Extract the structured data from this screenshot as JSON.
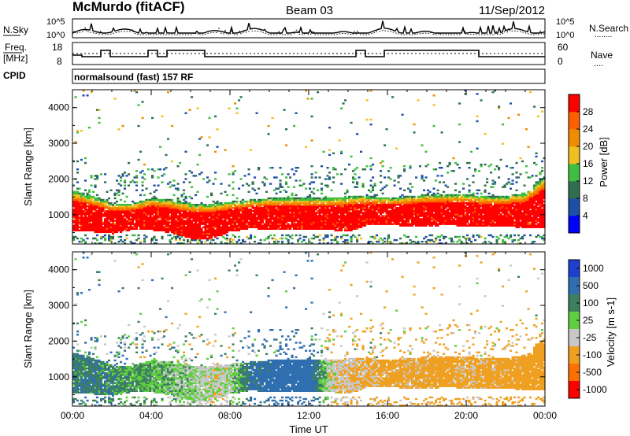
{
  "header": {
    "station": "McMurdo (fitACF)",
    "beam": "Beam 03",
    "date": "11/Sep/2012"
  },
  "noise_panel": {
    "left_label": "N.Sky",
    "right_label": "N.Search",
    "right_key": "........",
    "ytick_top": "10^5",
    "ytick_bottom": "10^0"
  },
  "freq_panel": {
    "left_label_1": "Freq.",
    "left_label_2": "[MHz]",
    "ytick_top": "18",
    "ytick_bottom": "8",
    "right_label": "Nave",
    "right_key": "....",
    "rtick_top": "60",
    "rtick_bottom": "0"
  },
  "cpid": {
    "label": "CPID",
    "value": "normalsound (fast) 157 RF"
  },
  "x_axis": {
    "title": "Time UT",
    "ticks": [
      "00:00",
      "04:00",
      "08:00",
      "12:00",
      "16:00",
      "20:00",
      "00:00"
    ]
  },
  "power_panel": {
    "ylabel": "Slant Range [km]",
    "yticks": [
      "1000",
      "2000",
      "3000",
      "4000"
    ],
    "colorbar_title": "Power [dB]",
    "colorbar_ticks": [
      "4",
      "8",
      "12",
      "16",
      "20",
      "24",
      "28"
    ],
    "colors": [
      "#0000ff",
      "#1e4fa8",
      "#2f6f4f",
      "#3fbf3f",
      "#f0c020",
      "#f08c00",
      "#ff6000",
      "#ff0000"
    ]
  },
  "velocity_panel": {
    "ylabel": "Slant Range [km]",
    "yticks": [
      "1000",
      "2000",
      "3000",
      "4000"
    ],
    "colorbar_title": "Velocity [m s-1]",
    "colorbar_ticks": [
      "1000",
      "500",
      "100",
      "25",
      "-25",
      "-100",
      "-500",
      "-1000"
    ],
    "colors": [
      "#1e3fd0",
      "#2f6faf",
      "#3d7f5f",
      "#5fcf3f",
      "#c8c8c8",
      "#f0a020",
      "#ff7000",
      "#ff0000"
    ]
  },
  "chart_data": {
    "type": "heatmap",
    "title": "McMurdo (fitACF)  Beam 03  11/Sep/2012",
    "x_range_hours": [
      0,
      24
    ],
    "xlabel": "Time UT",
    "ylabel": "Slant Range [km]",
    "ylim": [
      180,
      4500
    ],
    "panels": [
      {
        "name": "Power",
        "unit": "dB",
        "clim": [
          0,
          30
        ],
        "times_h": [
          0,
          1,
          2,
          3,
          4,
          5,
          6,
          7,
          8,
          9,
          10,
          11,
          12,
          13,
          14,
          15,
          16,
          17,
          18,
          19,
          20,
          21,
          22,
          23,
          24
        ],
        "echo_low_km": [
          500,
          500,
          450,
          550,
          550,
          450,
          300,
          300,
          500,
          600,
          550,
          550,
          550,
          550,
          500,
          700,
          700,
          650,
          650,
          700,
          650,
          650,
          650,
          600,
          600
        ],
        "echo_high_km": [
          1650,
          1500,
          1300,
          1300,
          1450,
          1400,
          1300,
          1300,
          1350,
          1400,
          1450,
          1450,
          1450,
          1450,
          1500,
          1500,
          1450,
          1500,
          1550,
          1550,
          1550,
          1500,
          1500,
          1600,
          2100
        ],
        "core_power_db": 30
      },
      {
        "name": "Velocity",
        "unit": "m s-1",
        "clim": [
          -1000,
          1000
        ],
        "times_h": [
          0,
          1,
          2,
          3,
          4,
          5,
          6,
          7,
          8,
          9,
          10,
          11,
          12,
          13,
          14,
          15,
          16,
          17,
          18,
          19,
          20,
          21,
          22,
          23,
          24
        ],
        "mean_velocity_ms": [
          80,
          80,
          60,
          40,
          30,
          -10,
          -20,
          -60,
          -40,
          120,
          150,
          200,
          180,
          -60,
          -100,
          -120,
          -150,
          -130,
          -150,
          -160,
          -120,
          -140,
          -150,
          -160,
          -170
        ]
      }
    ]
  }
}
